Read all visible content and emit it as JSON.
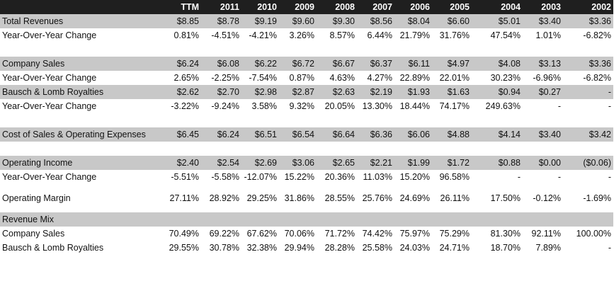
{
  "header": [
    "",
    "TTM",
    "2011",
    "2010",
    "2009",
    "2008",
    "2007",
    "2006",
    "2005",
    "2004",
    "2003",
    "2002"
  ],
  "rows": [
    {
      "style": "shade",
      "cells": [
        "Total Revenues",
        "$8.85",
        "$8.78",
        "$9.19",
        "$9.60",
        "$9.30",
        "$8.56",
        "$8.04",
        "$6.60",
        "$5.01",
        "$3.40",
        "$3.36"
      ]
    },
    {
      "style": "plain",
      "cells": [
        "Year-Over-Year Change",
        "0.81%",
        "-4.51%",
        "-4.21%",
        "3.26%",
        "8.57%",
        "6.44%",
        "21.79%",
        "31.76%",
        "47.54%",
        "1.01%",
        "-6.82%"
      ]
    },
    {
      "style": "blank",
      "cells": [
        "",
        "",
        "",
        "",
        "",
        "",
        "",
        "",
        "",
        "",
        "",
        ""
      ]
    },
    {
      "style": "shade",
      "cells": [
        "Company Sales",
        "$6.24",
        "$6.08",
        "$6.22",
        "$6.72",
        "$6.67",
        "$6.37",
        "$6.11",
        "$4.97",
        "$4.08",
        "$3.13",
        "$3.36"
      ]
    },
    {
      "style": "plain",
      "cells": [
        "Year-Over-Year Change",
        "2.65%",
        "-2.25%",
        "-7.54%",
        "0.87%",
        "4.63%",
        "4.27%",
        "22.89%",
        "22.01%",
        "30.23%",
        "-6.96%",
        "-6.82%"
      ]
    },
    {
      "style": "shade",
      "cells": [
        "Bausch & Lomb Royalties",
        "$2.62",
        "$2.70",
        "$2.98",
        "$2.87",
        "$2.63",
        "$2.19",
        "$1.93",
        "$1.63",
        "$0.94",
        "$0.27",
        "-"
      ]
    },
    {
      "style": "plain",
      "cells": [
        "Year-Over-Year Change",
        "-3.22%",
        "-9.24%",
        "3.58%",
        "9.32%",
        "20.05%",
        "13.30%",
        "18.44%",
        "74.17%",
        "249.63%",
        "-",
        "-"
      ]
    },
    {
      "style": "blank",
      "cells": [
        "",
        "",
        "",
        "",
        "",
        "",
        "",
        "",
        "",
        "",
        "",
        ""
      ]
    },
    {
      "style": "shade",
      "cells": [
        "Cost of Sales & Operating Expenses",
        "$6.45",
        "$6.24",
        "$6.51",
        "$6.54",
        "$6.64",
        "$6.36",
        "$6.06",
        "$4.88",
        "$4.14",
        "$3.40",
        "$3.42"
      ]
    },
    {
      "style": "blank",
      "cells": [
        "",
        "",
        "",
        "",
        "",
        "",
        "",
        "",
        "",
        "",
        "",
        ""
      ]
    },
    {
      "style": "shade",
      "cells": [
        "Operating Income",
        "$2.40",
        "$2.54",
        "$2.69",
        "$3.06",
        "$2.65",
        "$2.21",
        "$1.99",
        "$1.72",
        "$0.88",
        "$0.00",
        "($0.06)"
      ]
    },
    {
      "style": "plain",
      "cells": [
        "Year-Over-Year Change",
        "-5.51%",
        "-5.58%",
        "-12.07%",
        "15.22%",
        "20.36%",
        "11.03%",
        "15.20%",
        "96.58%",
        "-",
        "-",
        "-"
      ]
    },
    {
      "style": "tall",
      "cells": [
        "Operating Margin",
        "27.11%",
        "28.92%",
        "29.25%",
        "31.86%",
        "28.55%",
        "25.76%",
        "24.69%",
        "26.11%",
        "17.50%",
        "-0.12%",
        "-1.69%"
      ]
    },
    {
      "style": "shade",
      "cells": [
        "Revenue Mix",
        "",
        "",
        "",
        "",
        "",
        "",
        "",
        "",
        "",
        "",
        ""
      ]
    },
    {
      "style": "plain",
      "cells": [
        "Company Sales",
        "70.49%",
        "69.22%",
        "67.62%",
        "70.06%",
        "71.72%",
        "74.42%",
        "75.97%",
        "75.29%",
        "81.30%",
        "92.11%",
        "100.00%"
      ]
    },
    {
      "style": "plain",
      "cells": [
        "Bausch & Lomb Royalties",
        "29.55%",
        "30.78%",
        "32.38%",
        "29.94%",
        "28.28%",
        "25.58%",
        "24.03%",
        "24.71%",
        "18.70%",
        "7.89%",
        "-"
      ]
    }
  ]
}
